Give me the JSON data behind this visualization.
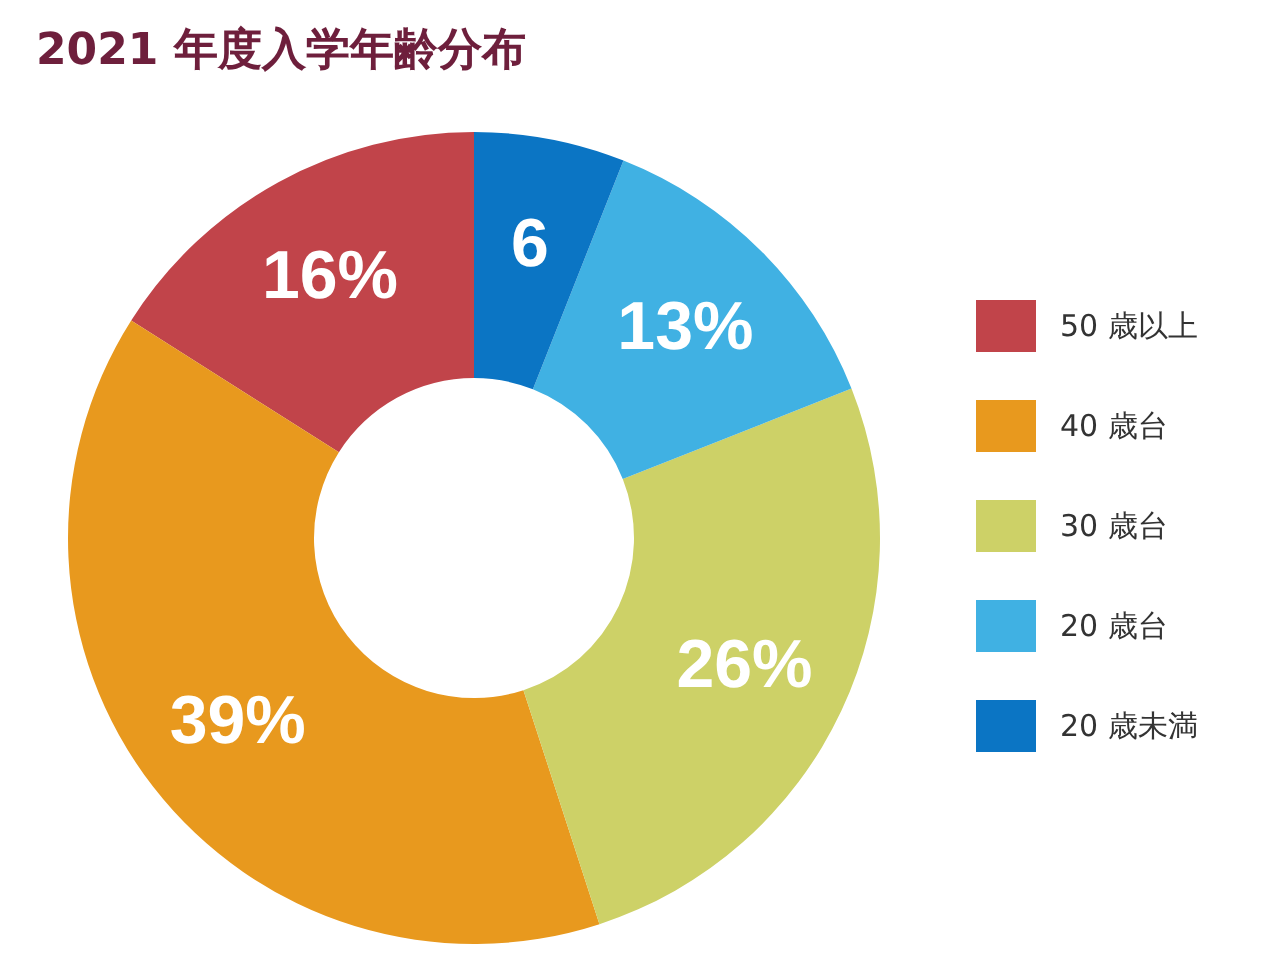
{
  "chart_data": {
    "type": "donut",
    "title": "2021 年度入学年齢分布",
    "categories": [
      "50 歳以上",
      "40 歳台",
      "30 歳台",
      "20 歳台",
      "20 歳未満"
    ],
    "values": [
      16,
      39,
      26,
      13,
      6
    ],
    "colors": [
      "#c1444a",
      "#e8991e",
      "#cdd167",
      "#40b1e3",
      "#0b75c4"
    ],
    "value_labels": [
      "16%",
      "39%",
      "26%",
      "13%",
      "6"
    ],
    "legend": "right"
  }
}
